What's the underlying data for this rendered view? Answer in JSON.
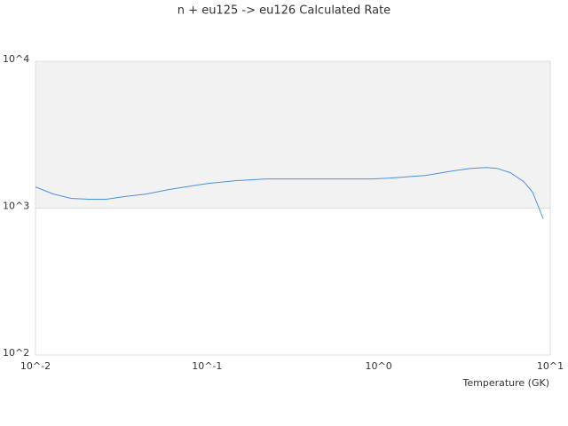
{
  "chart_data": {
    "type": "line",
    "title": "n + eu125 -> eu126 Calculated Rate",
    "x_label": "Temperature (GK)",
    "x": [
      0.01,
      0.0127,
      0.0161,
      0.0204,
      0.0259,
      0.0329,
      0.0443,
      0.0597,
      0.0804,
      0.102,
      0.146,
      0.221,
      0.402,
      0.925,
      1.17,
      1.89,
      2.7,
      3.43,
      4.25,
      4.9,
      5.86,
      7.0,
      7.89,
      9.1
    ],
    "series": [
      {
        "name": "n + eu125 -> eu126",
        "color": "#4a90e2",
        "values": [
          1395,
          1248,
          1165,
          1149,
          1149,
          1198,
          1248,
          1338,
          1414,
          1475,
          1537,
          1581,
          1581,
          1581,
          1603,
          1671,
          1791,
          1866,
          1892,
          1866,
          1741,
          1516,
          1284,
          846
        ]
      }
    ],
    "xlim": [
      0.01,
      10
    ],
    "ylim": [
      100,
      10000
    ],
    "xticks": [
      {
        "value": 0.01,
        "label": "10^-2"
      },
      {
        "value": 0.1,
        "label": "10^-1"
      },
      {
        "value": 1,
        "label": "10^0"
      },
      {
        "value": 10,
        "label": "10^1"
      }
    ],
    "yticks": [
      {
        "value": 100,
        "label": "10^2"
      },
      {
        "value": 1000,
        "label": "10^3"
      },
      {
        "value": 10000,
        "label": "10^4"
      }
    ],
    "x_log": true,
    "y_log": true,
    "grid": true,
    "grid_bands": true
  }
}
